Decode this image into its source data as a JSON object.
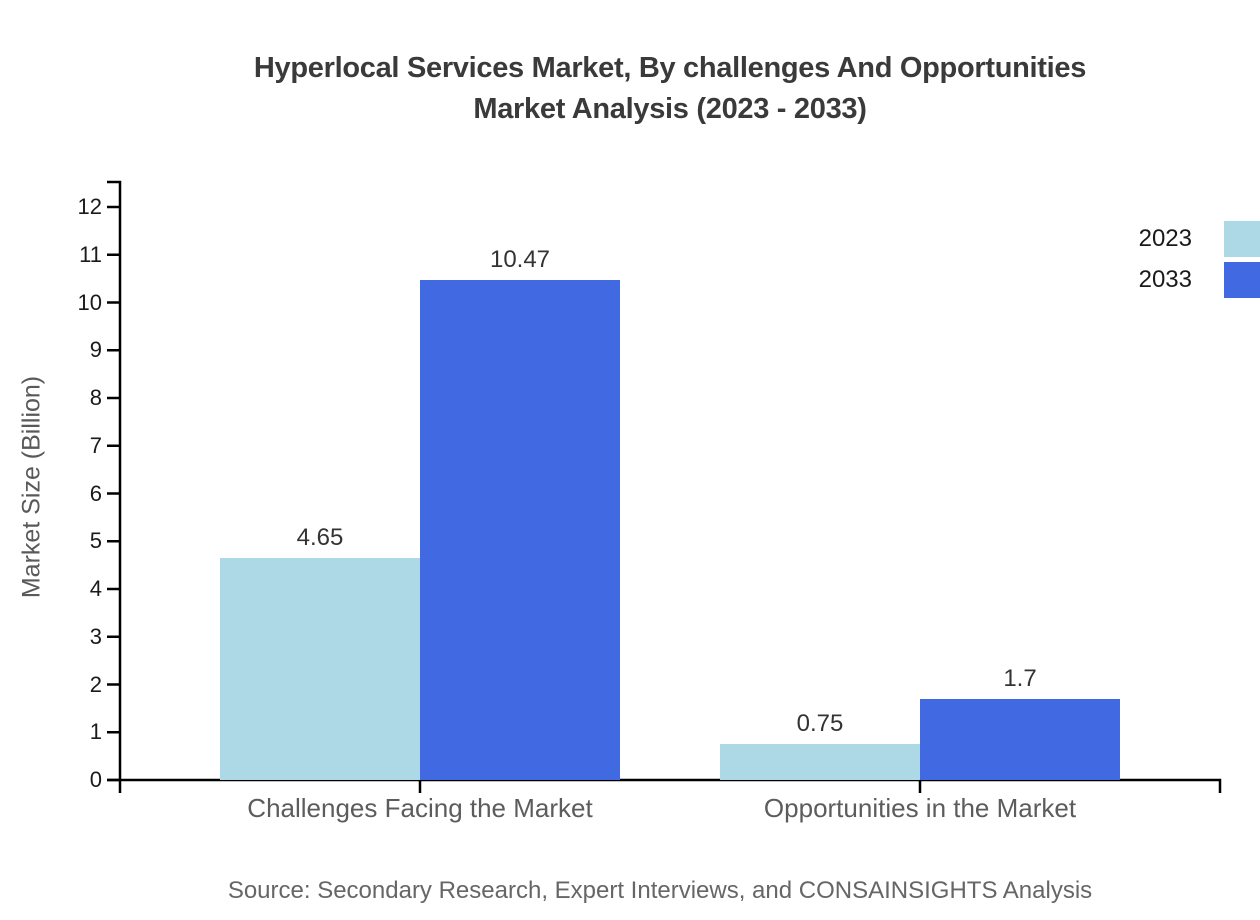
{
  "chart_data": {
    "type": "bar",
    "title_line1": "Hyperlocal Services Market, By challenges And Opportunities",
    "title_line2": "Market Analysis (2023 - 2033)",
    "categories": [
      "Challenges Facing the Market",
      "Opportunities in the Market"
    ],
    "series": [
      {
        "name": "2023",
        "color": "#ADD8E6",
        "values": [
          4.65,
          0.75
        ]
      },
      {
        "name": "2033",
        "color": "#4169E1",
        "values": [
          10.47,
          1.7
        ]
      }
    ],
    "ylabel": "Market Size (Billion)",
    "xlabel": "",
    "ylim": [
      0,
      12
    ],
    "yticks": [
      0,
      1,
      2,
      3,
      4,
      5,
      6,
      7,
      8,
      9,
      10,
      11,
      12
    ],
    "grid": false,
    "legend_position": "top-right",
    "axis_color": "#000000",
    "source_note": "Source: Secondary Research, Expert Interviews, and CONSAINSIGHTS Analysis"
  }
}
